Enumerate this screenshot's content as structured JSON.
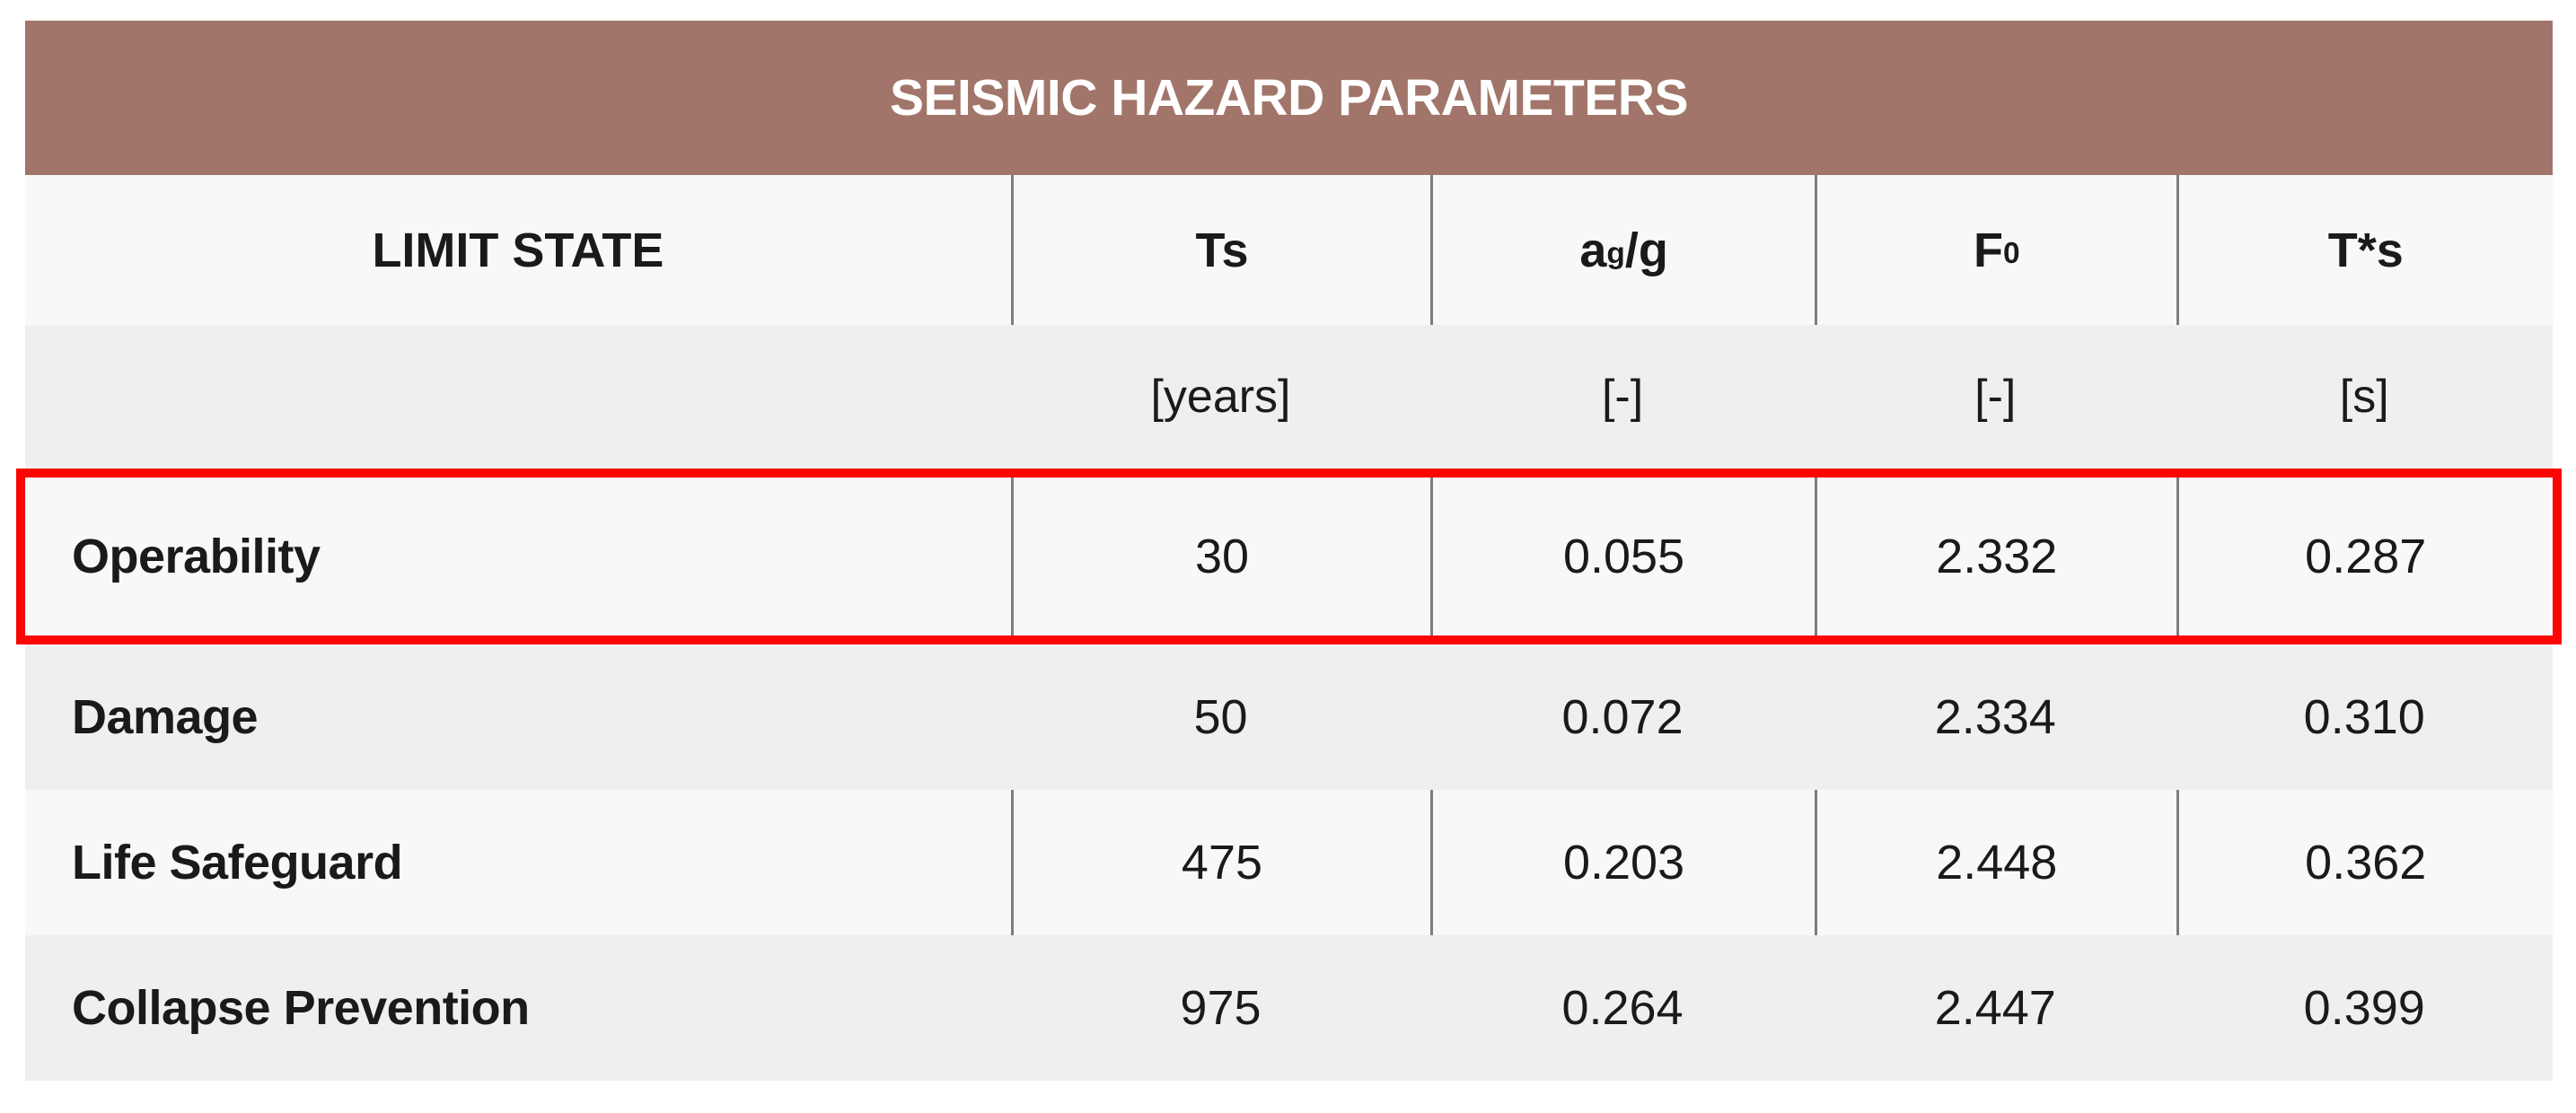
{
  "colors": {
    "title_bg": "#A17569",
    "title_text": "#FFFFFF",
    "row_light": "#F8F8F8",
    "row_dark": "#F0EFEF",
    "divider": "#7D7D7D",
    "highlight_border": "#FB0505",
    "text": "#1A1A1A"
  },
  "table": {
    "title": "SEISMIC HAZARD PARAMETERS",
    "columns": [
      {
        "pre": "LIMIT STATE",
        "sub": "",
        "post": ""
      },
      {
        "pre": "Ts",
        "sub": "",
        "post": ""
      },
      {
        "pre": "a",
        "sub": "g",
        "post": "/g"
      },
      {
        "pre": "F",
        "sub": "0",
        "post": ""
      },
      {
        "pre": "T*s",
        "sub": "",
        "post": ""
      }
    ],
    "units": [
      "",
      "[years]",
      "[-]",
      "[-]",
      "[s]"
    ],
    "rows": [
      {
        "label": "Operability",
        "highlighted": "true",
        "values": [
          "30",
          "0.055",
          "2.332",
          "0.287"
        ]
      },
      {
        "label": "Damage",
        "highlighted": "false",
        "values": [
          "50",
          "0.072",
          "2.334",
          "0.310"
        ]
      },
      {
        "label": "Life Safeguard",
        "highlighted": "false",
        "values": [
          "475",
          "0.203",
          "2.448",
          "0.362"
        ]
      },
      {
        "label": "Collapse Prevention",
        "highlighted": "false",
        "values": [
          "975",
          "0.264",
          "2.447",
          "0.399"
        ]
      }
    ]
  },
  "chart_data": {
    "type": "table",
    "title": "SEISMIC HAZARD PARAMETERS",
    "columns": [
      "LIMIT STATE",
      "Ts [years]",
      "ag/g [-]",
      "F0 [-]",
      "T*s [s]"
    ],
    "rows": [
      [
        "Operability",
        30,
        0.055,
        2.332,
        0.287
      ],
      [
        "Damage",
        50,
        0.072,
        2.334,
        0.31
      ],
      [
        "Life Safeguard",
        475,
        0.203,
        2.448,
        0.362
      ],
      [
        "Collapse Prevention",
        975,
        0.264,
        2.447,
        0.399
      ]
    ],
    "highlighted_row": "Operability",
    "layout": "alternating light/dark row stripes; vertical column dividers on light rows only; red annotation box around Operability row"
  }
}
